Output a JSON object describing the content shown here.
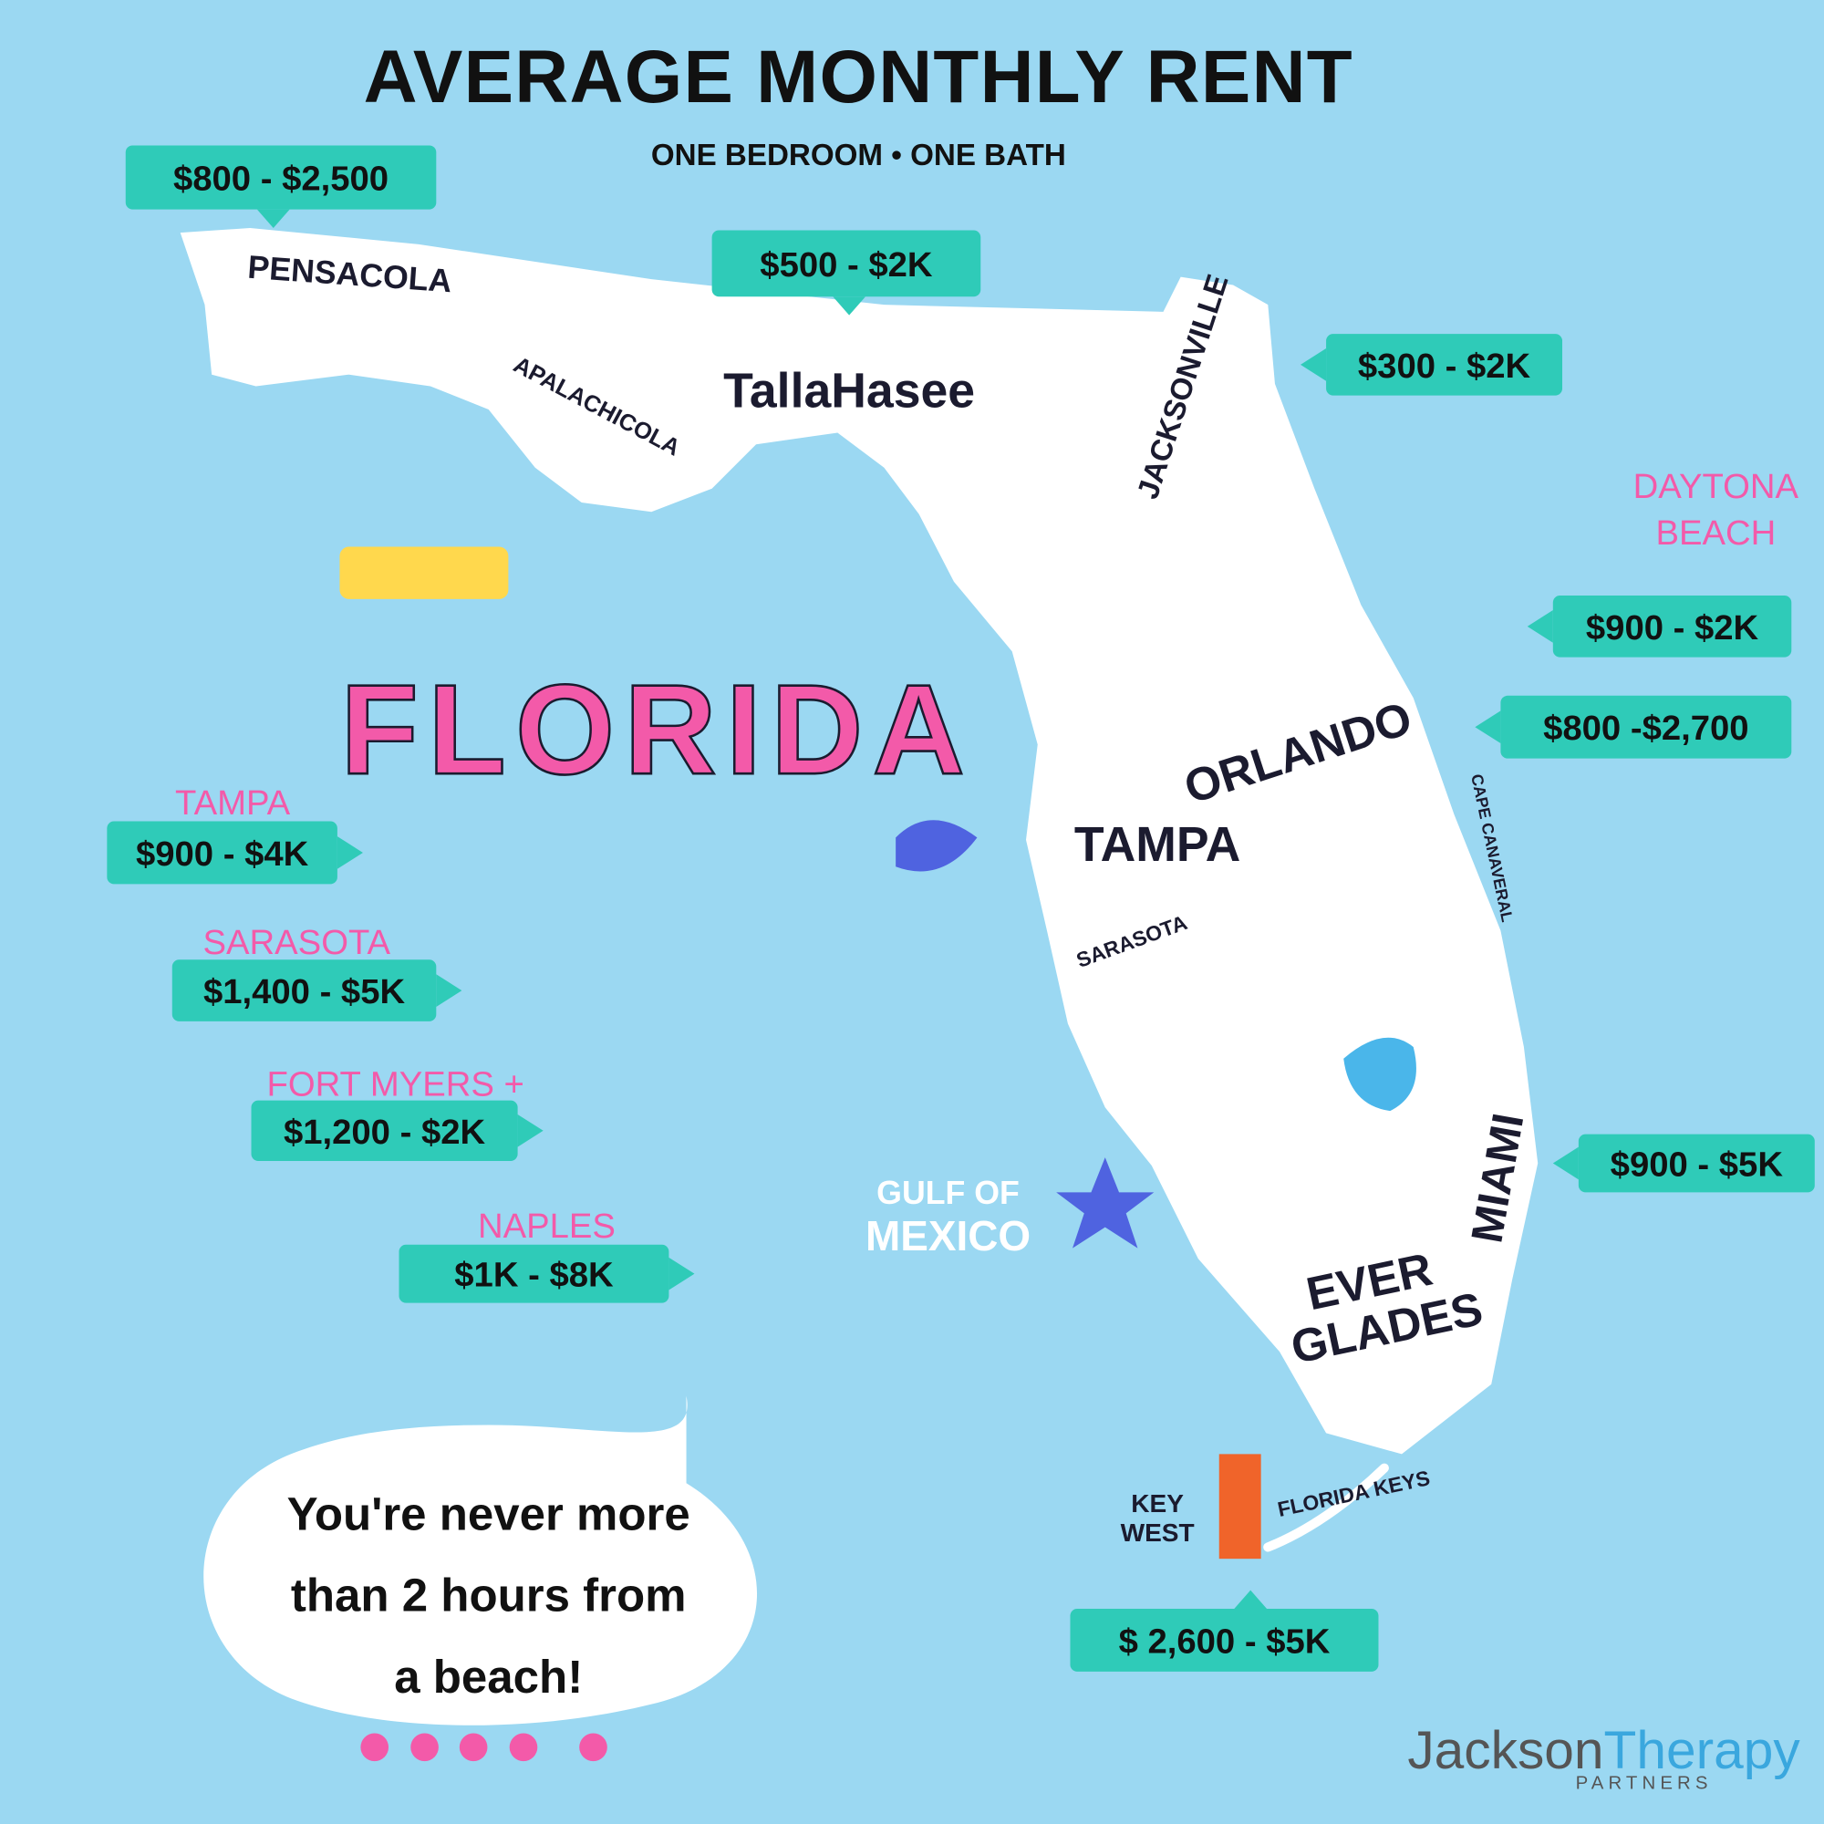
{
  "header": {
    "title": "AVERAGE MONTHLY RENT",
    "subtitle": "ONE BEDROOM • ONE BATH"
  },
  "tags": [
    {
      "text": "$800 - $2,500"
    },
    {
      "text": "$500 - $2K"
    },
    {
      "text": "$300 - $2K"
    },
    {
      "text": "$900 - $2K",
      "city": [
        "DAYTONA",
        "BEACH"
      ]
    },
    {
      "text": "$800 -$2,700"
    },
    {
      "text": "$900 - $4K",
      "city": [
        "TAMPA"
      ]
    },
    {
      "text": "$1,400 - $5K",
      "city": [
        "SARASOTA"
      ]
    },
    {
      "text": "$1,200 - $2K",
      "city": [
        "FORT MYERS +"
      ]
    },
    {
      "text": "$1K - $8K",
      "city": [
        "NAPLES"
      ]
    },
    {
      "text": "$900 - $5K"
    },
    {
      "text": "$ 2,600 - $5K"
    }
  ],
  "map_labels": {
    "state": "FLORIDA",
    "pensacola": "PENSACOLA",
    "apalachicola": "APALACHICOLA",
    "tallahassee": "TallaHasee",
    "jacksonville": "JACKSONVILLE",
    "orlando": "ORLANDO",
    "tampa": "TAMPA",
    "sarasota": "SARASOTA",
    "cape_canaveral": "CAPE CANAVERAL",
    "miami": "MIAMI",
    "everglades": [
      "EVER",
      "GLADES"
    ],
    "key_west": [
      "KEY",
      "WEST"
    ],
    "florida_keys": "FLORIDA KEYS",
    "gulf": [
      "GULF OF",
      "MEXICO"
    ]
  },
  "bubble": [
    "You're never more",
    "than 2 hours from",
    "a beach!"
  ],
  "logo": {
    "part1": "Jackson",
    "part2": "Therapy",
    "tagline": "PARTNERS"
  }
}
